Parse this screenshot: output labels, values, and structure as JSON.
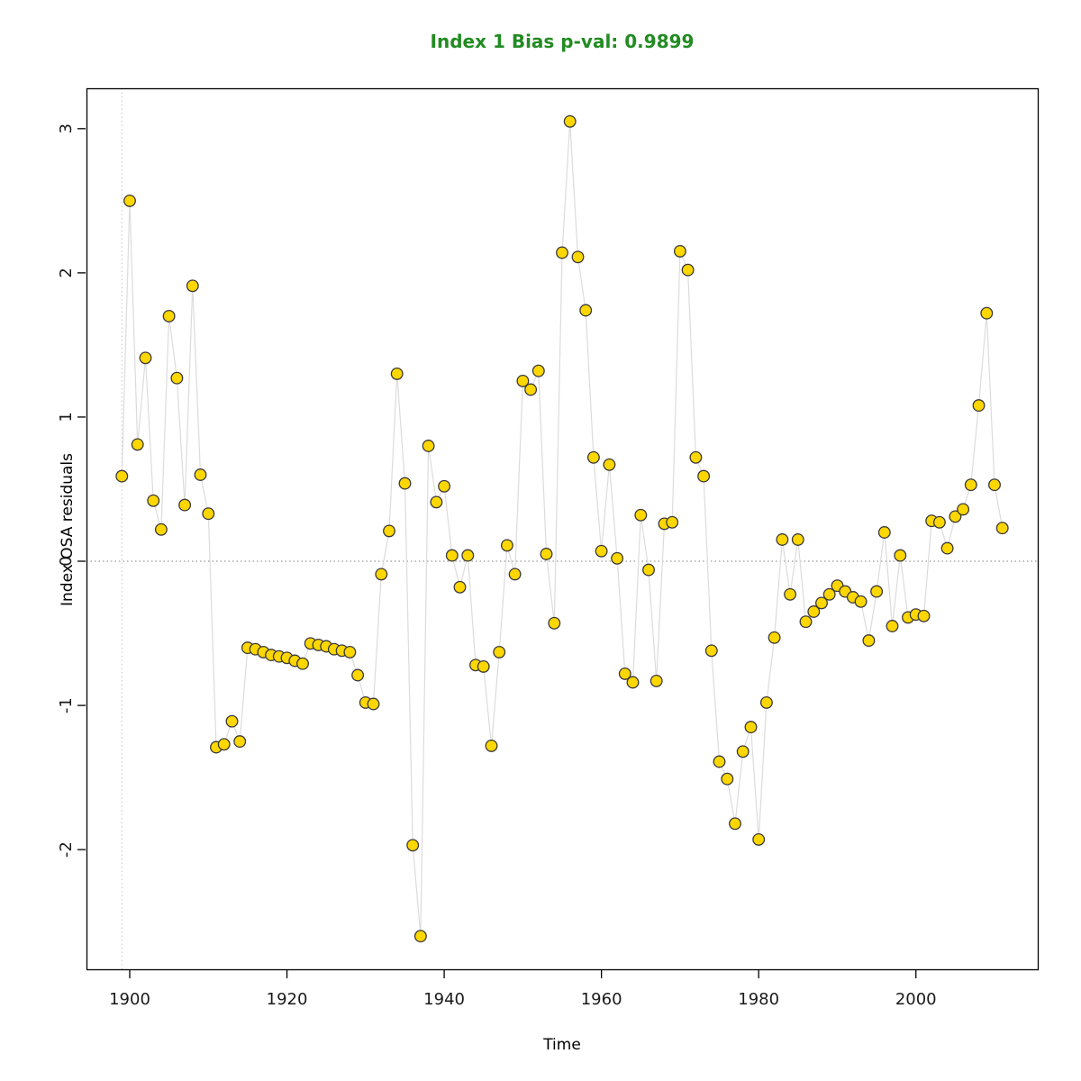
{
  "title": {
    "text": "Index 1 Bias p-val: 0.9899",
    "color": "#228B22"
  },
  "axes": {
    "x": {
      "label": "Time",
      "ticks": [
        1900,
        1920,
        1940,
        1960,
        1980,
        2000
      ],
      "range": [
        1894.5,
        2015.5
      ]
    },
    "y": {
      "label": "Index OSA residuals",
      "ticks": [
        -2,
        -1,
        0,
        1,
        2,
        3
      ],
      "range": [
        -2.83,
        3.28
      ]
    }
  },
  "reference_lines": {
    "horizontal_at_y": 0,
    "vertical_at_x": 1899,
    "horizontal_color": "#808080",
    "vertical_color": "#c6c6c6"
  },
  "style": {
    "marker_fill": "#FFD700",
    "marker_stroke": "#3a3a3a",
    "line_color": "#dcdcdc",
    "axis_color": "#000000",
    "tick_label_color": "#1a1a1a"
  },
  "chart_data": {
    "type": "line",
    "title": "Index 1 Bias p-val: 0.9899",
    "xlabel": "Time",
    "ylabel": "Index OSA residuals",
    "xlim": [
      1894.5,
      2015.5
    ],
    "ylim": [
      -2.83,
      3.28
    ],
    "grid": false,
    "x": [
      1899,
      1900,
      1901,
      1902,
      1903,
      1904,
      1905,
      1906,
      1907,
      1908,
      1909,
      1910,
      1911,
      1912,
      1913,
      1914,
      1915,
      1916,
      1917,
      1918,
      1919,
      1920,
      1921,
      1922,
      1923,
      1924,
      1925,
      1926,
      1927,
      1928,
      1929,
      1930,
      1931,
      1932,
      1933,
      1934,
      1935,
      1936,
      1937,
      1938,
      1939,
      1940,
      1941,
      1942,
      1943,
      1944,
      1945,
      1946,
      1947,
      1948,
      1949,
      1950,
      1951,
      1952,
      1953,
      1954,
      1955,
      1956,
      1957,
      1958,
      1959,
      1960,
      1961,
      1962,
      1963,
      1964,
      1965,
      1966,
      1967,
      1968,
      1969,
      1970,
      1971,
      1972,
      1973,
      1974,
      1975,
      1976,
      1977,
      1978,
      1979,
      1980,
      1981,
      1982,
      1983,
      1984,
      1985,
      1986,
      1987,
      1988,
      1989,
      1990,
      1991,
      1992,
      1993,
      1994,
      1995,
      1996,
      1997,
      1998,
      1999,
      2000,
      2001,
      2002,
      2003,
      2004,
      2005,
      2006,
      2007,
      2008,
      2009,
      2010,
      2011
    ],
    "y": [
      0.59,
      2.5,
      0.81,
      1.41,
      0.42,
      0.22,
      1.7,
      1.27,
      0.39,
      1.91,
      0.6,
      0.33,
      -1.29,
      -1.27,
      -1.11,
      -1.25,
      -0.6,
      -0.61,
      -0.63,
      -0.65,
      -0.66,
      -0.67,
      -0.69,
      -0.71,
      -0.57,
      -0.58,
      -0.59,
      -0.61,
      -0.62,
      -0.63,
      -0.79,
      -0.98,
      -0.99,
      -0.09,
      0.21,
      1.3,
      0.54,
      -1.97,
      -2.6,
      0.8,
      0.41,
      0.52,
      0.04,
      -0.18,
      0.04,
      -0.72,
      -0.73,
      -1.28,
      -0.63,
      0.11,
      -0.09,
      1.25,
      1.19,
      1.32,
      0.05,
      -0.43,
      2.14,
      3.05,
      2.11,
      1.74,
      0.72,
      0.07,
      0.67,
      0.02,
      -0.78,
      -0.84,
      0.32,
      -0.06,
      -0.83,
      0.26,
      0.27,
      2.15,
      2.02,
      0.72,
      0.59,
      -0.62,
      -1.39,
      -1.51,
      -1.82,
      -1.32,
      -1.15,
      -1.93,
      -0.98,
      -0.53,
      0.15,
      -0.23,
      0.15,
      -0.42,
      -0.35,
      -0.29,
      -0.23,
      -0.17,
      -0.21,
      -0.25,
      -0.28,
      -0.55,
      -0.21,
      0.2,
      -0.45,
      0.04,
      -0.39,
      -0.37,
      -0.38,
      0.28,
      0.27,
      0.09,
      0.31,
      0.36,
      0.53,
      1.08,
      1.72,
      0.53,
      0.23
    ]
  }
}
